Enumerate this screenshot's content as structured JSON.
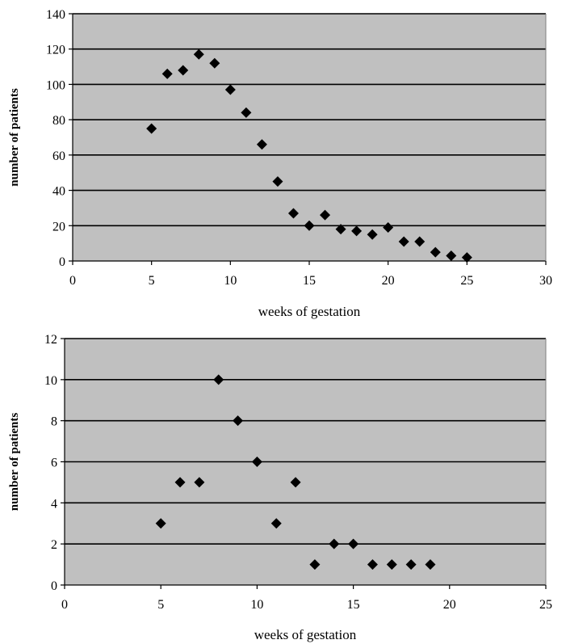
{
  "chart_data": [
    {
      "type": "scatter",
      "title": "",
      "xlabel": "weeks of gestation",
      "ylabel": "number of patients",
      "xlim": [
        0,
        30
      ],
      "ylim": [
        0,
        140
      ],
      "xticks": [
        0,
        5,
        10,
        15,
        20,
        25,
        30
      ],
      "yticks": [
        0,
        20,
        40,
        60,
        80,
        100,
        120,
        140
      ],
      "grid": "horizontal",
      "plot_background": "#c0c0c0",
      "marker": "diamond",
      "marker_color": "#000000",
      "series": [
        {
          "x": [
            5,
            6,
            7,
            8,
            9,
            10,
            11,
            12,
            13,
            14,
            15,
            16,
            17,
            18,
            19,
            20,
            21,
            22,
            23,
            24,
            25
          ],
          "y": [
            75,
            106,
            108,
            117,
            112,
            97,
            84,
            66,
            45,
            27,
            20,
            26,
            18,
            17,
            15,
            19,
            11,
            11,
            5,
            3,
            2
          ]
        }
      ]
    },
    {
      "type": "scatter",
      "title": "",
      "xlabel": "weeks of gestation",
      "ylabel": "number of patients",
      "xlim": [
        0,
        25
      ],
      "ylim": [
        0,
        12
      ],
      "xticks": [
        0,
        5,
        10,
        15,
        20,
        25
      ],
      "yticks": [
        0,
        2,
        4,
        6,
        8,
        10,
        12
      ],
      "grid": "horizontal",
      "plot_background": "#c0c0c0",
      "marker": "diamond",
      "marker_color": "#000000",
      "series": [
        {
          "x": [
            5,
            6,
            7,
            8,
            9,
            10,
            11,
            12,
            13,
            14,
            15,
            16,
            17,
            18,
            19
          ],
          "y": [
            3,
            5,
            5,
            10,
            8,
            6,
            3,
            5,
            1,
            2,
            2,
            1,
            1,
            1,
            1
          ]
        }
      ]
    }
  ]
}
